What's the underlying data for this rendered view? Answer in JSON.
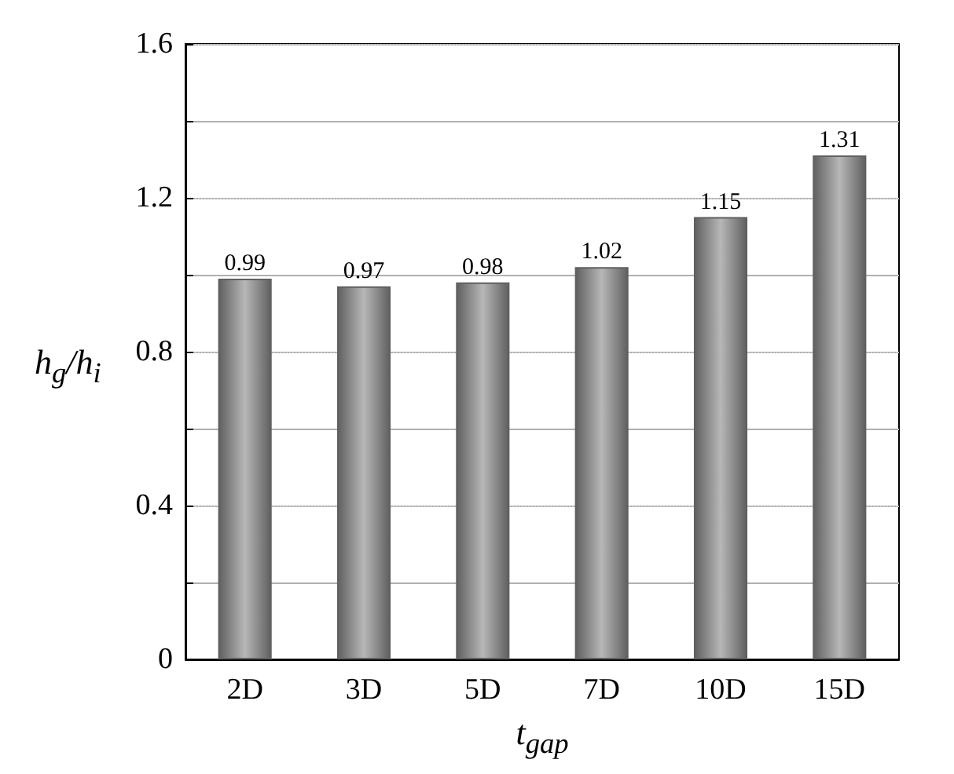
{
  "chart_data": {
    "type": "bar",
    "xlabel": "t$_{gap}$",
    "ylabel": "h$_{g}$/h$_{i}$",
    "categories": [
      "2D",
      "3D",
      "5D",
      "7D",
      "10D",
      "15D"
    ],
    "values": [
      0.99,
      0.97,
      0.98,
      1.02,
      1.15,
      1.31
    ],
    "color": "#606060",
    "ylim": [
      0,
      1.6
    ],
    "yticks": [
      0,
      {
        "value": 0.2,
        "label": null
      },
      0.4,
      {
        "value": 0.6,
        "label": null
      },
      0.8,
      {
        "value": 1.0,
        "label": null
      },
      1.2,
      {
        "value": 1.4,
        "label": null
      },
      1.6
    ],
    "grid": "y",
    "data_labels": true
  }
}
